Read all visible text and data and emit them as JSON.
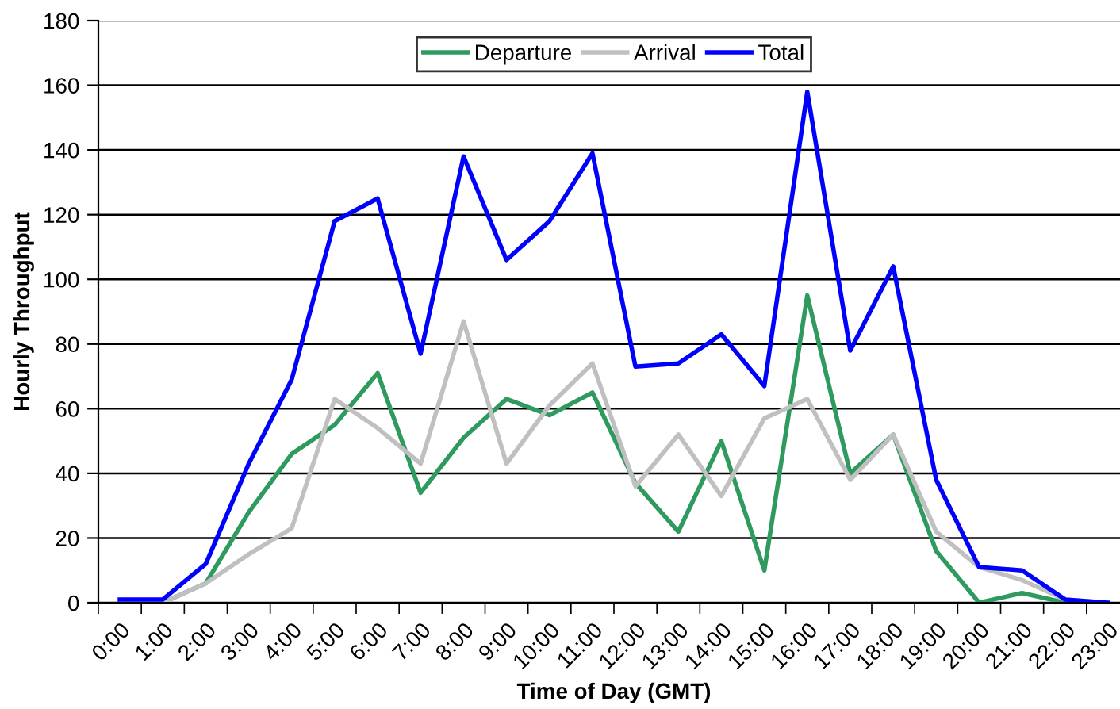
{
  "chart_data": {
    "type": "line",
    "xlabel": "Time of Day (GMT)",
    "ylabel": "Hourly Throughput",
    "categories": [
      "0:00",
      "1:00",
      "2:00",
      "3:00",
      "4:00",
      "5:00",
      "6:00",
      "7:00",
      "8:00",
      "9:00",
      "10:00",
      "11:00",
      "12:00",
      "13:00",
      "14:00",
      "15:00",
      "16:00",
      "17:00",
      "18:00",
      "19:00",
      "20:00",
      "21:00",
      "22:00",
      "23:00"
    ],
    "series": [
      {
        "name": "Departure",
        "color": "#2e9a5e",
        "values": [
          null,
          0,
          6,
          28,
          46,
          55,
          71,
          34,
          51,
          63,
          58,
          65,
          37,
          22,
          50,
          10,
          95,
          40,
          52,
          16,
          0,
          3,
          0,
          0
        ]
      },
      {
        "name": "Arrival",
        "color": "#c0c0c0",
        "values": [
          0,
          0,
          6,
          15,
          23,
          63,
          54,
          43,
          87,
          43,
          61,
          74,
          36,
          52,
          33,
          57,
          63,
          38,
          52,
          22,
          11,
          7,
          1,
          0
        ]
      },
      {
        "name": "Total",
        "color": "#0000ff",
        "values": [
          1,
          1,
          12,
          43,
          69,
          118,
          125,
          77,
          138,
          106,
          118,
          139,
          73,
          74,
          83,
          67,
          158,
          78,
          104,
          38,
          11,
          10,
          1,
          0
        ]
      }
    ],
    "ylim": [
      0,
      180
    ],
    "yticks": [
      0,
      20,
      40,
      60,
      80,
      100,
      120,
      140,
      160,
      180
    ],
    "grid": "y",
    "legend": "top",
    "marker": "none",
    "line_style": "solid"
  }
}
